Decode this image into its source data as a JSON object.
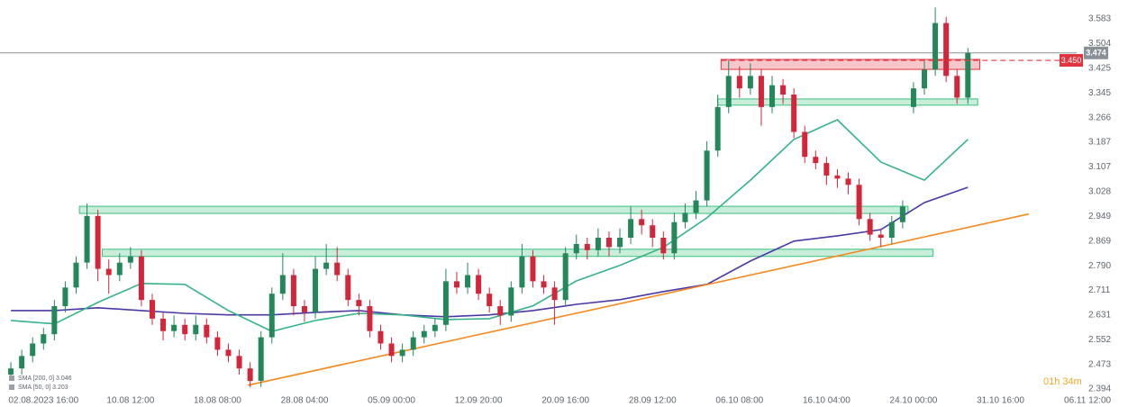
{
  "chart_data": {
    "type": "candlestick",
    "ylim": [
      2.336,
      3.644
    ],
    "yticks": [
      2.394,
      2.473,
      2.552,
      2.631,
      2.711,
      {
        "value": 2.79,
        "label": "2.790"
      },
      2.869,
      2.949,
      3.028,
      3.107,
      3.187,
      3.266,
      3.345,
      3.425,
      3.504,
      3.583
    ],
    "xlim": [
      -1,
      98
    ],
    "xticks": [
      {
        "value": 3,
        "label": "02.08.2023  16:00"
      },
      {
        "value": 11,
        "label": "10.08  12:00"
      },
      {
        "value": 19,
        "label": "18.08  08:00"
      },
      {
        "value": 27,
        "label": "28.08  04:00"
      },
      {
        "value": 35,
        "label": "05.09  00:00"
      },
      {
        "value": 43,
        "label": "12.09  20:00"
      },
      {
        "value": 51,
        "label": "20.09  16:00"
      },
      {
        "value": 59,
        "label": "28.09  12:00"
      },
      {
        "value": 67,
        "label": "06.10  08:00"
      },
      {
        "value": 75,
        "label": "16.10  04:00"
      },
      {
        "value": 83,
        "label": "24.10  00:00"
      },
      {
        "value": 91,
        "label": "31.10  16:00"
      },
      {
        "value": 99,
        "label": "06.11  12:00"
      }
    ],
    "candles": {
      "up_color": "#23875a",
      "down_color": "#d3263b",
      "open": [
        2.44,
        2.46,
        2.5,
        2.54,
        2.57,
        2.66,
        2.72,
        2.8,
        2.95,
        2.78,
        2.76,
        2.8,
        2.82,
        2.68,
        2.62,
        2.58,
        2.6,
        2.57,
        2.6,
        2.56,
        2.52,
        2.5,
        2.46,
        2.42,
        2.56,
        2.7,
        2.76,
        2.66,
        2.64,
        2.78,
        2.8,
        2.76,
        2.68,
        2.66,
        2.58,
        2.54,
        2.5,
        2.52,
        2.56,
        2.58,
        2.6,
        2.74,
        2.72,
        2.76,
        2.7,
        2.66,
        2.63,
        2.72,
        2.82,
        2.74,
        2.72,
        2.68,
        2.83,
        2.86,
        2.84,
        2.88,
        2.85,
        2.88,
        2.94,
        2.92,
        2.88,
        2.83,
        2.93,
        2.96,
        3.0,
        3.16,
        3.3,
        3.4,
        3.36,
        3.4,
        3.3,
        3.37,
        3.34,
        3.22,
        3.14,
        3.12,
        3.08,
        3.07,
        3.05,
        2.94,
        2.89,
        2.88,
        2.93,
        3.3,
        3.36,
        3.42,
        3.57,
        3.4,
        3.33
      ],
      "high": [
        2.48,
        2.52,
        2.56,
        2.59,
        2.68,
        2.74,
        2.82,
        2.99,
        2.97,
        2.81,
        2.83,
        2.85,
        2.84,
        2.7,
        2.64,
        2.63,
        2.62,
        2.63,
        2.62,
        2.58,
        2.54,
        2.52,
        2.48,
        2.58,
        2.72,
        2.83,
        2.78,
        2.68,
        2.82,
        2.86,
        2.85,
        2.78,
        2.7,
        2.68,
        2.6,
        2.56,
        2.54,
        2.58,
        2.6,
        2.62,
        2.78,
        2.77,
        2.8,
        2.78,
        2.72,
        2.68,
        2.74,
        2.86,
        2.84,
        2.76,
        2.74,
        2.85,
        2.89,
        2.88,
        2.91,
        2.9,
        2.91,
        2.98,
        2.97,
        2.94,
        2.9,
        2.96,
        2.99,
        3.03,
        3.19,
        3.34,
        3.45,
        3.43,
        3.44,
        3.42,
        3.4,
        3.39,
        3.36,
        3.24,
        3.16,
        3.14,
        3.1,
        3.09,
        3.07,
        2.96,
        2.91,
        2.95,
        3.0,
        3.38,
        3.45,
        3.62,
        3.59,
        3.42,
        3.49
      ],
      "low": [
        2.42,
        2.44,
        2.48,
        2.52,
        2.55,
        2.64,
        2.7,
        2.78,
        2.74,
        2.7,
        2.74,
        2.78,
        2.66,
        2.6,
        2.55,
        2.56,
        2.55,
        2.55,
        2.54,
        2.5,
        2.48,
        2.44,
        2.4,
        2.4,
        2.54,
        2.68,
        2.63,
        2.61,
        2.62,
        2.76,
        2.74,
        2.66,
        2.63,
        2.56,
        2.52,
        2.48,
        2.48,
        2.5,
        2.54,
        2.56,
        2.58,
        2.7,
        2.7,
        2.68,
        2.64,
        2.6,
        2.61,
        2.7,
        2.72,
        2.7,
        2.6,
        2.66,
        2.81,
        2.81,
        2.82,
        2.82,
        2.83,
        2.86,
        2.89,
        2.85,
        2.81,
        2.81,
        2.91,
        2.94,
        2.98,
        3.14,
        3.28,
        3.33,
        3.34,
        3.24,
        3.28,
        3.31,
        3.2,
        3.12,
        3.1,
        3.05,
        3.04,
        3.02,
        2.92,
        2.87,
        2.85,
        2.86,
        2.91,
        3.28,
        3.34,
        3.4,
        3.38,
        3.31,
        3.31
      ],
      "close": [
        2.46,
        2.5,
        2.54,
        2.57,
        2.66,
        2.72,
        2.8,
        2.95,
        2.78,
        2.76,
        2.8,
        2.82,
        2.68,
        2.62,
        2.58,
        2.6,
        2.57,
        2.6,
        2.56,
        2.52,
        2.5,
        2.46,
        2.42,
        2.56,
        2.7,
        2.76,
        2.66,
        2.64,
        2.78,
        2.8,
        2.76,
        2.68,
        2.66,
        2.58,
        2.54,
        2.5,
        2.52,
        2.56,
        2.58,
        2.6,
        2.74,
        2.72,
        2.76,
        2.7,
        2.66,
        2.63,
        2.72,
        2.82,
        2.74,
        2.72,
        2.68,
        2.83,
        2.86,
        2.84,
        2.88,
        2.85,
        2.88,
        2.94,
        2.92,
        2.88,
        2.83,
        2.93,
        2.96,
        3.0,
        3.16,
        3.3,
        3.4,
        3.36,
        3.4,
        3.3,
        3.37,
        3.34,
        3.22,
        3.14,
        3.12,
        3.08,
        3.07,
        3.05,
        2.94,
        2.89,
        2.88,
        2.93,
        2.98,
        3.36,
        3.42,
        3.57,
        3.4,
        3.33,
        3.474
      ]
    },
    "sma": [
      {
        "name": "SMA [200, 0] 3.046",
        "color": "#4b38a6",
        "x": [
          0,
          4,
          8,
          12,
          16,
          20,
          24,
          28,
          32,
          36,
          40,
          44,
          48,
          52,
          56,
          60,
          64,
          68,
          72,
          76,
          80,
          84,
          88
        ],
        "values": [
          2.646,
          2.646,
          2.655,
          2.646,
          2.637,
          2.632,
          2.632,
          2.64,
          2.646,
          2.632,
          2.626,
          2.632,
          2.646,
          2.666,
          2.681,
          2.707,
          2.73,
          2.805,
          2.869,
          2.886,
          2.906,
          2.993,
          3.042
        ]
      },
      {
        "name": "SMA [50, 0] 3.203",
        "color": "#36b387",
        "x": [
          0,
          4,
          8,
          12,
          16,
          20,
          24,
          28,
          32,
          36,
          40,
          44,
          48,
          52,
          56,
          60,
          64,
          68,
          72,
          76,
          80,
          84,
          88
        ],
        "values": [
          2.614,
          2.603,
          2.672,
          2.733,
          2.73,
          2.646,
          2.579,
          2.614,
          2.637,
          2.632,
          2.617,
          2.62,
          2.661,
          2.741,
          2.791,
          2.849,
          2.944,
          3.065,
          3.196,
          3.259,
          3.123,
          3.065,
          3.196
        ]
      }
    ],
    "trendline": {
      "color": "#f5891f",
      "x": [
        21.8,
        93.6
      ],
      "values": [
        2.406,
        2.956
      ]
    },
    "zones": [
      {
        "color": "#3cbf7d",
        "x": [
          6.3,
          82.5
        ],
        "y": [
          2.958,
          2.981
        ]
      },
      {
        "color": "#3cbf7d",
        "x": [
          8.4,
          84.8
        ],
        "y": [
          2.82,
          2.843
        ]
      },
      {
        "color": "#3cbf7d",
        "x": [
          65.0,
          88.9
        ],
        "y": [
          3.306,
          3.326
        ]
      },
      {
        "color": "#e0343f",
        "x": [
          65.3,
          89.1
        ],
        "y": [
          3.421,
          3.453
        ]
      }
    ],
    "current_price": {
      "value": 3.474,
      "color": "#8a9097"
    },
    "alert_line": {
      "value": 3.45,
      "label": "3.450",
      "color": "#e0343f"
    },
    "timer": "01h 34m"
  }
}
